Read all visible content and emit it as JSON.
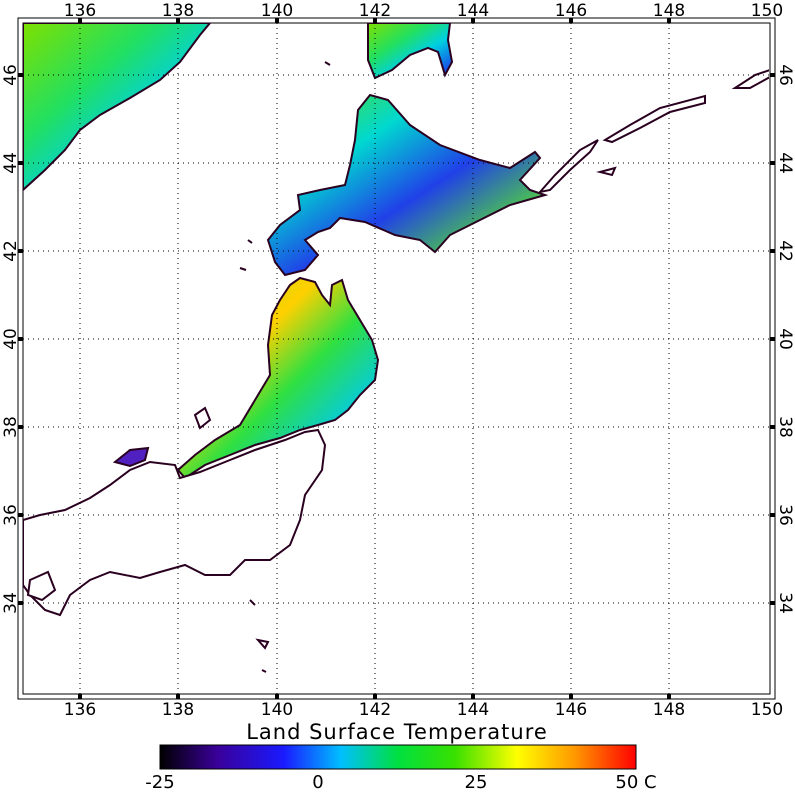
{
  "title": "Land Surface Temperature",
  "lon_labels": [
    "136",
    "138",
    "140",
    "142",
    "144",
    "146",
    "148",
    "150"
  ],
  "lat_labels": [
    "34",
    "36",
    "38",
    "40",
    "42",
    "44",
    "46"
  ],
  "colorbar": {
    "ticks": [
      "-25",
      "0",
      "25",
      "50 C"
    ],
    "stops": [
      "#000000",
      "#3a0099",
      "#1a1aff",
      "#00d8ff",
      "#00e040",
      "#39e000",
      "#ffff00",
      "#ff9900",
      "#ff0000"
    ]
  },
  "colors": {
    "coast": "#2a0020",
    "land_missing": "#ffffff",
    "grid": "#000000"
  }
}
